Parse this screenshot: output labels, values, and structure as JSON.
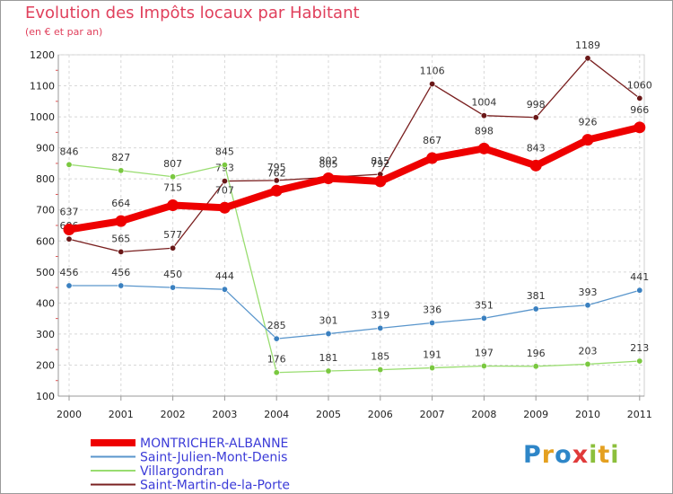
{
  "header": {
    "title": "Evolution des Impôts locaux par Habitant",
    "subtitle": "(en € et par an)"
  },
  "logo": {
    "text": "Proxiti",
    "letters": [
      "P",
      "r",
      "o",
      "x",
      "i",
      "t",
      "i"
    ],
    "colors": [
      "#2e86c8",
      "#e4a020",
      "#2e86c8",
      "#e03a3a",
      "#8cbf3c",
      "#e4a020",
      "#8cbf3c"
    ]
  },
  "chart_data": {
    "type": "line",
    "title": "Evolution des Impôts locaux par Habitant",
    "subtitle": "(en € et par an)",
    "xlabel": "",
    "ylabel": "",
    "categories": [
      "2000",
      "2001",
      "2002",
      "2003",
      "2004",
      "2005",
      "2006",
      "2007",
      "2008",
      "2009",
      "2010",
      "2011"
    ],
    "ylim": [
      100,
      1200
    ],
    "yticks": [
      "100",
      "200",
      "300",
      "400",
      "500",
      "600",
      "700",
      "800",
      "900",
      "1000",
      "1100",
      "1200"
    ],
    "grid": true,
    "legend_position": "bottom-left",
    "series": [
      {
        "name": "Saint-Martin-de-la-Porte",
        "color": "#7a2020",
        "marker": "#6a1818",
        "values": [
          606,
          565,
          577,
          793,
          795,
          805,
          815,
          1106,
          1004,
          998,
          1189,
          1060
        ],
        "labels": [
          "606",
          "565",
          "577",
          "793",
          "795",
          "805",
          "815",
          "1106",
          "1004",
          "998",
          "1189",
          "1060"
        ]
      },
      {
        "name": "Villargondran",
        "color": "#99dd70",
        "marker": "#7ac840",
        "values": [
          846,
          827,
          807,
          845,
          176,
          181,
          185,
          191,
          197,
          196,
          203,
          213
        ],
        "labels": [
          "846",
          "827",
          "807",
          "845",
          "176",
          "181",
          "185",
          "191",
          "197",
          "196",
          "203",
          "213"
        ]
      },
      {
        "name": "Saint-Julien-Mont-Denis",
        "color": "#5a96cc",
        "marker": "#3a80c0",
        "values": [
          456,
          456,
          450,
          444,
          285,
          301,
          319,
          336,
          351,
          381,
          393,
          441
        ],
        "labels": [
          "456",
          "456",
          "450",
          "444",
          "285",
          "301",
          "319",
          "336",
          "351",
          "381",
          "393",
          "441"
        ]
      },
      {
        "name": "MONTRICHER-ALBANNE",
        "color": "#ee0000",
        "marker": "#ee0000",
        "values": [
          637,
          664,
          715,
          707,
          762,
          802,
          792,
          867,
          898,
          843,
          926,
          966
        ],
        "labels": [
          "637",
          "664",
          "715",
          "707",
          "762",
          "802",
          "792",
          "867",
          "898",
          "843",
          "926",
          "966"
        ]
      }
    ],
    "legend": [
      {
        "name": "MONTRICHER-ALBANNE",
        "color": "#ee0000",
        "text_color": "#3b3bd8",
        "thick": true
      },
      {
        "name": "Saint-Julien-Mont-Denis",
        "color": "#5a96cc",
        "text_color": "#3b3bd8",
        "thick": false
      },
      {
        "name": "Villargondran",
        "color": "#99dd70",
        "text_color": "#3b3bd8",
        "thick": false
      },
      {
        "name": "Saint-Martin-de-la-Porte",
        "color": "#7a2020",
        "text_color": "#3b3bd8",
        "thick": false
      }
    ]
  }
}
